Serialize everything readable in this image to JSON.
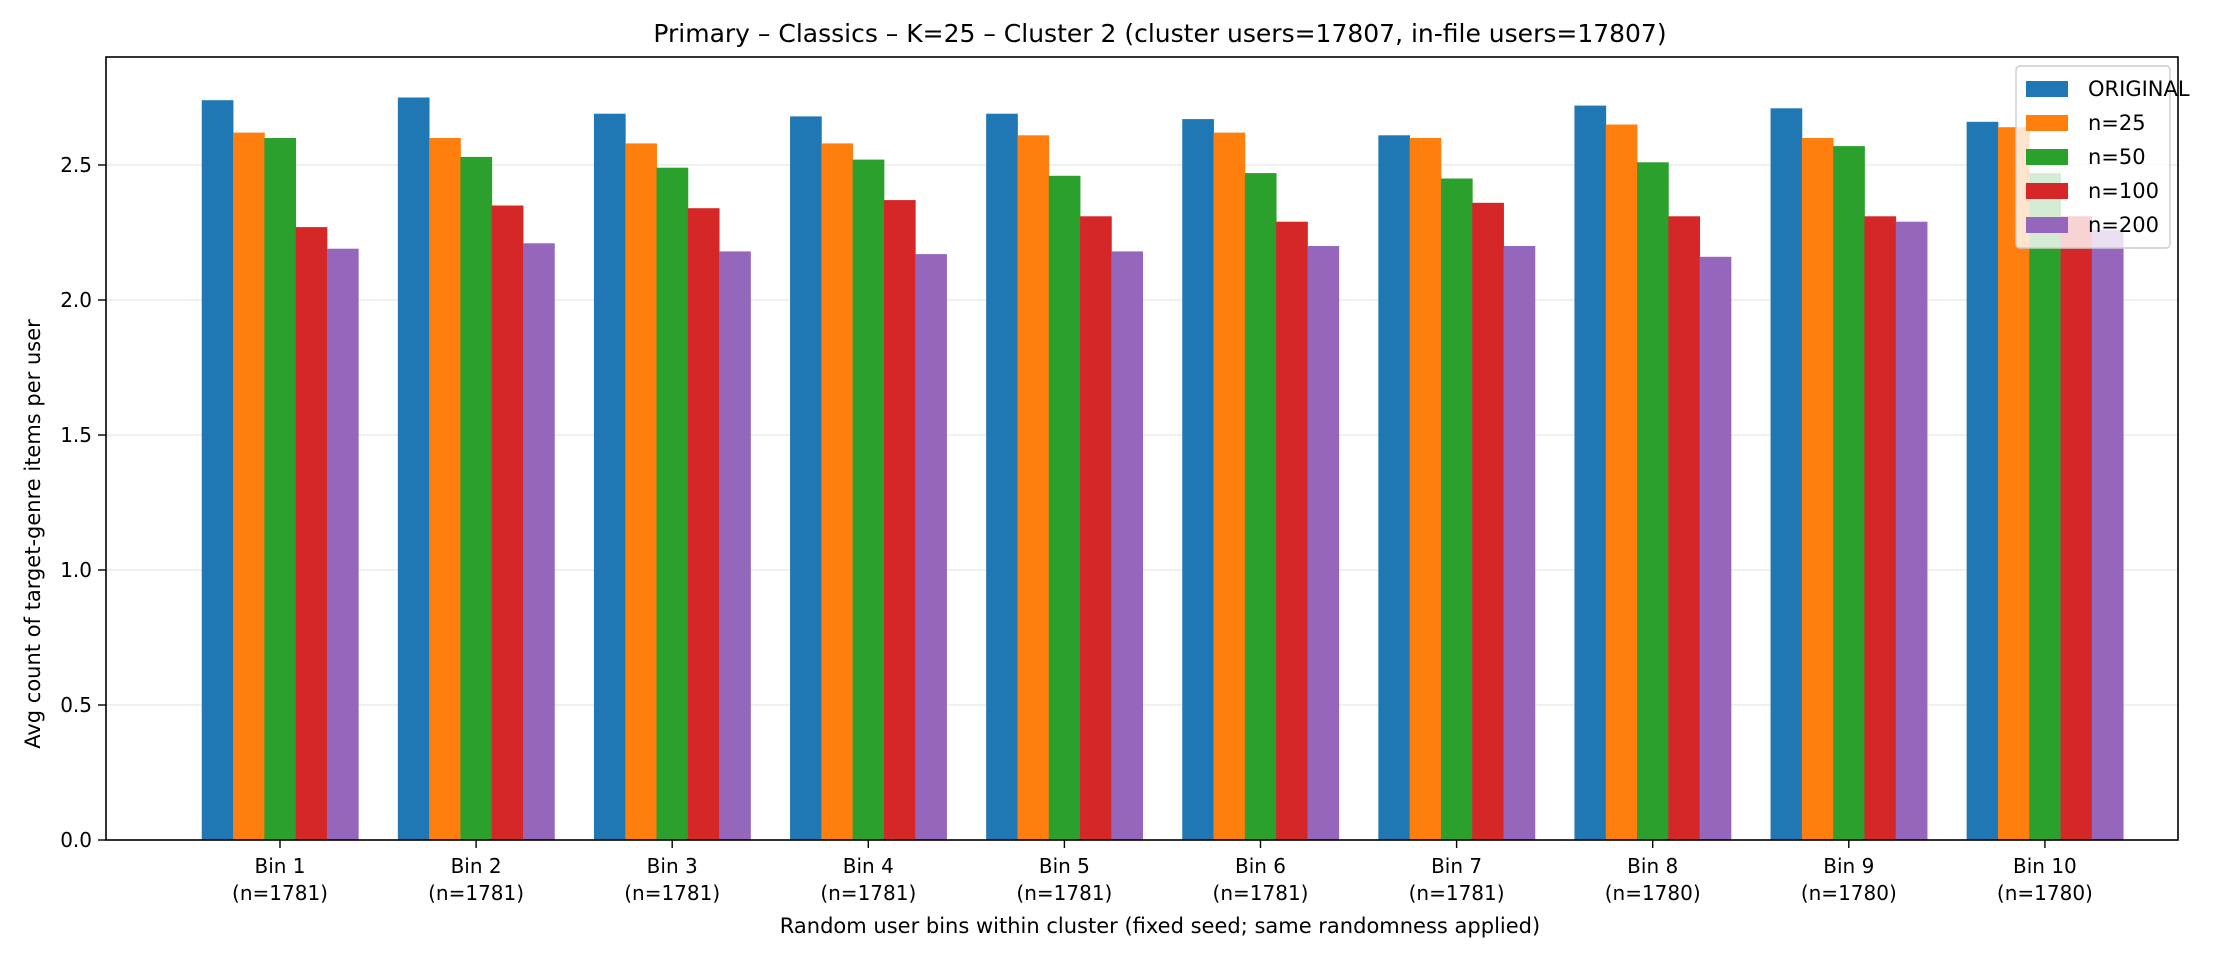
{
  "chart_data": {
    "type": "bar",
    "title": "Primary – Classics – K=25 – Cluster 2 (cluster users=17807, in-file users=17807)",
    "xlabel": "Random user bins within cluster (fixed seed; same randomness applied)",
    "ylabel": "Avg count of target-genre items per user",
    "ylim": [
      0,
      2.9
    ],
    "yticks": [
      "0.0",
      "0.5",
      "1.0",
      "1.5",
      "2.0",
      "2.5"
    ],
    "grid": "horizontal",
    "legend_position": "top-right",
    "categories": [
      {
        "name": "Bin 1",
        "n": "(n=1781)"
      },
      {
        "name": "Bin 2",
        "n": "(n=1781)"
      },
      {
        "name": "Bin 3",
        "n": "(n=1781)"
      },
      {
        "name": "Bin 4",
        "n": "(n=1781)"
      },
      {
        "name": "Bin 5",
        "n": "(n=1781)"
      },
      {
        "name": "Bin 6",
        "n": "(n=1781)"
      },
      {
        "name": "Bin 7",
        "n": "(n=1781)"
      },
      {
        "name": "Bin 8",
        "n": "(n=1780)"
      },
      {
        "name": "Bin 9",
        "n": "(n=1780)"
      },
      {
        "name": "Bin 10",
        "n": "(n=1780)"
      }
    ],
    "series": [
      {
        "name": "ORIGINAL",
        "color": "#1f77b4",
        "values": [
          2.74,
          2.75,
          2.69,
          2.68,
          2.69,
          2.67,
          2.61,
          2.72,
          2.71,
          2.66
        ]
      },
      {
        "name": "n=25",
        "color": "#ff7f0e",
        "values": [
          2.62,
          2.6,
          2.58,
          2.58,
          2.61,
          2.62,
          2.6,
          2.65,
          2.6,
          2.64
        ]
      },
      {
        "name": "n=50",
        "color": "#2ca02c",
        "values": [
          2.6,
          2.53,
          2.49,
          2.52,
          2.46,
          2.47,
          2.45,
          2.51,
          2.57,
          2.47
        ]
      },
      {
        "name": "n=100",
        "color": "#d62728",
        "values": [
          2.27,
          2.35,
          2.34,
          2.37,
          2.31,
          2.29,
          2.36,
          2.31,
          2.31,
          2.31
        ]
      },
      {
        "name": "n=200",
        "color": "#9467bd",
        "values": [
          2.19,
          2.21,
          2.18,
          2.17,
          2.18,
          2.2,
          2.2,
          2.16,
          2.29,
          2.26
        ]
      }
    ]
  }
}
